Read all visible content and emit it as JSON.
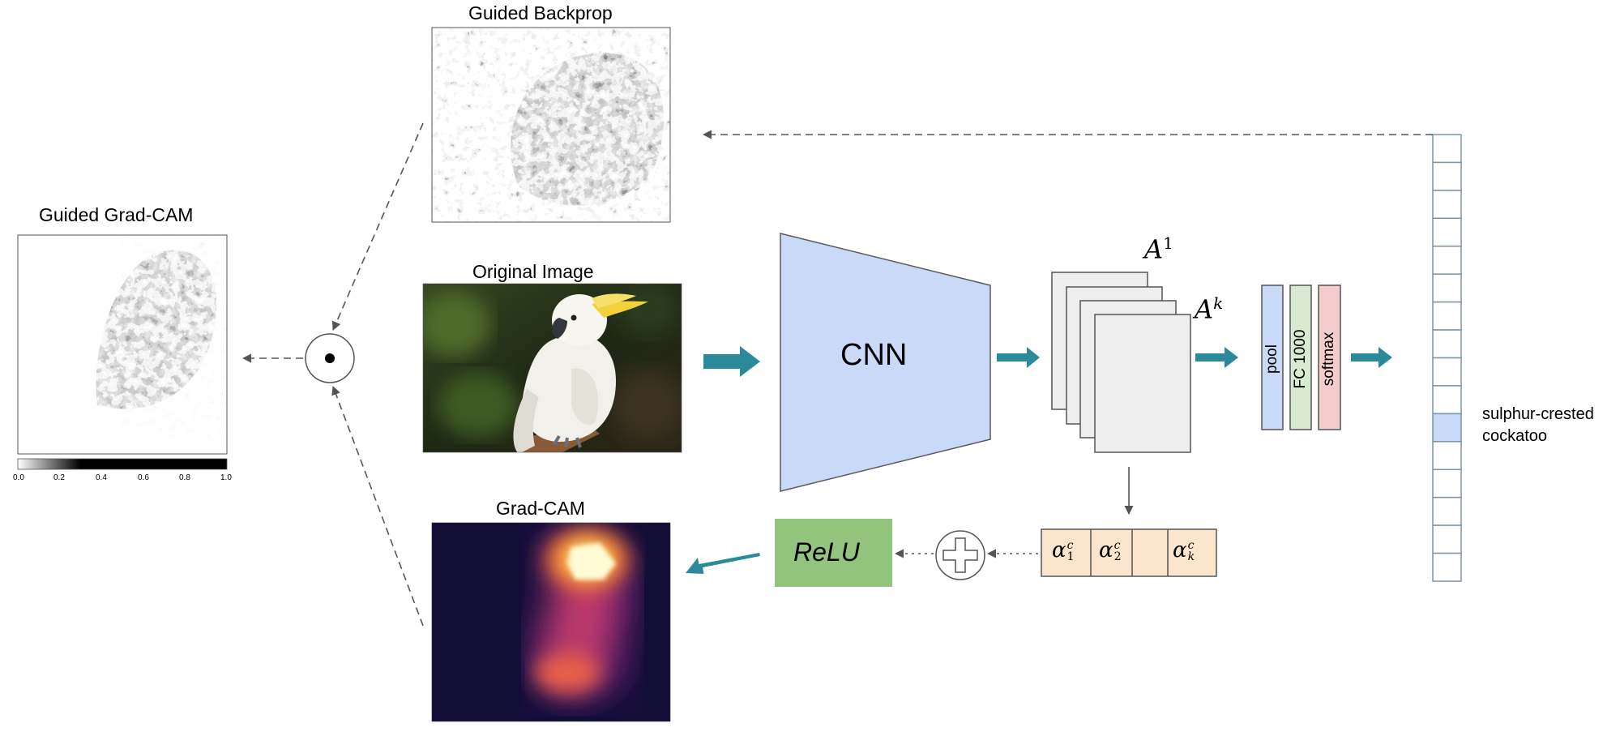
{
  "labels": {
    "guided_backprop": "Guided Backprop",
    "guided_gradcam": "Guided Grad-CAM",
    "original_image": "Original Image",
    "gradcam": "Grad-CAM",
    "cnn": "CNN",
    "relu": "ReLU",
    "pool": "pool",
    "fc": "FC 1000",
    "softmax": "softmax",
    "class_line1": "sulphur-crested",
    "class_line2": "cockatoo"
  },
  "math": {
    "feature_first": "A",
    "feature_first_sup": "1",
    "feature_last": "A",
    "feature_last_sup": "k",
    "alpha": "α",
    "alpha_1_sub": "1",
    "alpha_2_sub": "2",
    "alpha_k_sub": "k",
    "alpha_sup": "c"
  },
  "colorbar": {
    "ticks": [
      "0.0",
      "0.2",
      "0.4",
      "0.6",
      "0.8",
      "1.0"
    ]
  },
  "output_vector": {
    "cells": 16,
    "highlighted_index": 10
  },
  "colors": {
    "arrow_teal": "#2a8a99",
    "cnn_fill": "#c9daf8",
    "pool_fill": "#c9daf8",
    "fc_fill": "#d9ead3",
    "softmax_fill": "#f4cccc",
    "relu_fill": "#93c47d",
    "alpha_fill": "#fce5cd",
    "highlight_cell": "#c9daf8",
    "vector_border": "#7a95a8"
  }
}
